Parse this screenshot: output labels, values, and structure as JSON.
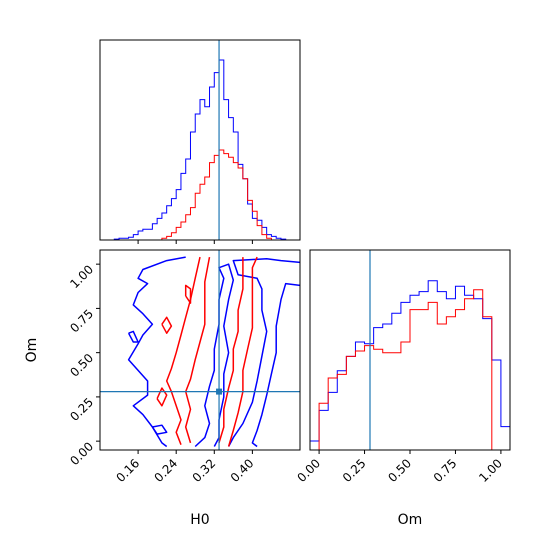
{
  "colors": {
    "blue": "#0000ff",
    "red": "#ff0000",
    "truth": "#1f77b4",
    "frame": "#000000"
  },
  "chart_data": [
    {
      "type": "histogram",
      "panel": "H0 marginal",
      "xlim": [
        0.08,
        0.5
      ],
      "truth": 0.33,
      "series": [
        {
          "color": "blue",
          "bin_edges": [
            0.09,
            0.1,
            0.11,
            0.12,
            0.13,
            0.14,
            0.15,
            0.16,
            0.17,
            0.18,
            0.19,
            0.2,
            0.21,
            0.22,
            0.23,
            0.24,
            0.25,
            0.26,
            0.27,
            0.28,
            0.29,
            0.3,
            0.31,
            0.32,
            0.33,
            0.34,
            0.35,
            0.36,
            0.37,
            0.38,
            0.39,
            0.4,
            0.41,
            0.42,
            0.43,
            0.44,
            0.45,
            0.46,
            0.47,
            0.48,
            0.49,
            0.5
          ],
          "heights": [
            0,
            0,
            0.005,
            0.01,
            0.01,
            0.015,
            0.03,
            0.05,
            0.06,
            0.06,
            0.09,
            0.12,
            0.15,
            0.19,
            0.23,
            0.28,
            0.37,
            0.45,
            0.6,
            0.7,
            0.78,
            0.74,
            0.85,
            0.93,
            1.0,
            0.78,
            0.68,
            0.6,
            0.42,
            0.34,
            0.2,
            0.12,
            0.11,
            0.07,
            0.03,
            0.02,
            0.01,
            0.005,
            0,
            0,
            0
          ]
        },
        {
          "color": "red",
          "bin_edges": [
            0.09,
            0.1,
            0.11,
            0.12,
            0.13,
            0.14,
            0.15,
            0.16,
            0.17,
            0.18,
            0.19,
            0.2,
            0.21,
            0.22,
            0.23,
            0.24,
            0.25,
            0.26,
            0.27,
            0.28,
            0.29,
            0.3,
            0.31,
            0.32,
            0.33,
            0.34,
            0.35,
            0.36,
            0.37,
            0.38,
            0.39,
            0.4,
            0.41,
            0.42,
            0.43,
            0.44,
            0.45,
            0.46,
            0.47,
            0.48,
            0.49,
            0.5
          ],
          "heights": [
            0,
            0,
            0,
            0,
            0,
            0,
            0,
            0,
            0,
            0,
            0,
            0,
            0.01,
            0.02,
            0.04,
            0.07,
            0.1,
            0.14,
            0.18,
            0.26,
            0.31,
            0.35,
            0.43,
            0.47,
            0.5,
            0.48,
            0.46,
            0.43,
            0.4,
            0.34,
            0.22,
            0.16,
            0.08,
            0.03,
            0.01,
            0,
            0,
            0,
            0,
            0,
            0
          ]
        }
      ]
    },
    {
      "type": "contour",
      "panel": "H0 vs Om",
      "xlabel": "H0",
      "ylabel": "Om",
      "xlim": [
        0.08,
        0.5
      ],
      "ylim": [
        -0.05,
        1.08
      ],
      "xticks": [
        0.16,
        0.24,
        0.32,
        0.4
      ],
      "xtick_labels": [
        "0.16",
        "0.24",
        "0.32",
        "0.40"
      ],
      "yticks": [
        0.0,
        0.25,
        0.5,
        0.75,
        1.0
      ],
      "ytick_labels": [
        "0.00",
        "0.25",
        "0.50",
        "0.75",
        "1.00"
      ],
      "truth": {
        "x": 0.33,
        "y": 0.28
      },
      "contours": [
        {
          "color": "blue",
          "level": "outer",
          "points": [
            [
              0.26,
              1.04
            ],
            [
              0.22,
              1.02
            ],
            [
              0.17,
              0.97
            ],
            [
              0.16,
              0.92
            ],
            [
              0.18,
              0.89
            ],
            [
              0.16,
              0.84
            ],
            [
              0.15,
              0.77
            ],
            [
              0.17,
              0.72
            ],
            [
              0.19,
              0.66
            ],
            [
              0.17,
              0.6
            ],
            [
              0.16,
              0.55
            ],
            [
              0.14,
              0.46
            ],
            [
              0.16,
              0.4
            ],
            [
              0.18,
              0.34
            ],
            [
              0.18,
              0.26
            ],
            [
              0.15,
              0.2
            ],
            [
              0.17,
              0.15
            ],
            [
              0.19,
              0.08
            ],
            [
              0.21,
              -0.01
            ],
            [
              0.22,
              -0.03
            ]
          ]
        },
        {
          "color": "blue",
          "level": "inner",
          "points": [
            [
              0.28,
              -0.03
            ],
            [
              0.3,
              0.02
            ],
            [
              0.31,
              0.1
            ],
            [
              0.3,
              0.2
            ],
            [
              0.31,
              0.31
            ],
            [
              0.32,
              0.4
            ],
            [
              0.32,
              0.52
            ],
            [
              0.33,
              0.66
            ],
            [
              0.33,
              0.8
            ],
            [
              0.34,
              0.92
            ],
            [
              0.33,
              0.98
            ],
            [
              0.35,
              1.0
            ],
            [
              0.36,
              0.91
            ],
            [
              0.35,
              0.8
            ],
            [
              0.34,
              0.65
            ],
            [
              0.35,
              0.5
            ],
            [
              0.34,
              0.38
            ],
            [
              0.34,
              0.25
            ],
            [
              0.33,
              0.12
            ],
            [
              0.33,
              0.02
            ],
            [
              0.32,
              -0.03
            ]
          ]
        },
        {
          "color": "blue",
          "level": "outer",
          "points": [
            [
              0.35,
              -0.03
            ],
            [
              0.36,
              0.02
            ],
            [
              0.38,
              0.1
            ],
            [
              0.4,
              0.22
            ],
            [
              0.41,
              0.34
            ],
            [
              0.42,
              0.48
            ],
            [
              0.43,
              0.62
            ],
            [
              0.42,
              0.74
            ],
            [
              0.42,
              0.86
            ],
            [
              0.41,
              0.92
            ],
            [
              0.37,
              0.94
            ],
            [
              0.36,
              1.02
            ],
            [
              0.43,
              1.03
            ],
            [
              0.46,
              1.02
            ],
            [
              0.5,
              1.01
            ]
          ]
        },
        {
          "color": "blue",
          "level": "outer",
          "points": [
            [
              0.5,
              0.88
            ],
            [
              0.47,
              0.89
            ],
            [
              0.46,
              0.8
            ],
            [
              0.45,
              0.65
            ],
            [
              0.45,
              0.5
            ],
            [
              0.44,
              0.38
            ],
            [
              0.43,
              0.26
            ],
            [
              0.42,
              0.15
            ],
            [
              0.41,
              0.06
            ],
            [
              0.4,
              -0.01
            ],
            [
              0.41,
              -0.03
            ]
          ]
        },
        {
          "color": "blue",
          "level": "inner",
          "points": [
            [
              0.14,
              0.61
            ],
            [
              0.15,
              0.56
            ],
            [
              0.16,
              0.56
            ],
            [
              0.15,
              0.62
            ],
            [
              0.14,
              0.61
            ]
          ]
        },
        {
          "color": "blue",
          "level": "inner",
          "points": [
            [
              0.19,
              0.08
            ],
            [
              0.2,
              0.04
            ],
            [
              0.22,
              0.05
            ],
            [
              0.21,
              0.09
            ],
            [
              0.19,
              0.08
            ]
          ]
        },
        {
          "color": "red",
          "level": "outer",
          "points": [
            [
              0.25,
              -0.02
            ],
            [
              0.24,
              0.05
            ],
            [
              0.25,
              0.12
            ],
            [
              0.24,
              0.2
            ],
            [
              0.23,
              0.28
            ],
            [
              0.22,
              0.34
            ],
            [
              0.23,
              0.41
            ],
            [
              0.24,
              0.5
            ],
            [
              0.25,
              0.6
            ],
            [
              0.26,
              0.7
            ],
            [
              0.27,
              0.8
            ],
            [
              0.28,
              0.92
            ],
            [
              0.29,
              1.04
            ]
          ]
        },
        {
          "color": "red",
          "level": "inner",
          "points": [
            [
              0.27,
              -0.01
            ],
            [
              0.26,
              0.08
            ],
            [
              0.27,
              0.18
            ],
            [
              0.26,
              0.28
            ],
            [
              0.27,
              0.35
            ],
            [
              0.28,
              0.46
            ],
            [
              0.29,
              0.56
            ],
            [
              0.3,
              0.66
            ],
            [
              0.3,
              0.78
            ],
            [
              0.3,
              0.9
            ],
            [
              0.31,
              1.04
            ]
          ]
        },
        {
          "color": "red",
          "level": "inner",
          "points": [
            [
              0.33,
              -0.01
            ],
            [
              0.34,
              0.08
            ],
            [
              0.34,
              0.18
            ],
            [
              0.35,
              0.3
            ],
            [
              0.36,
              0.4
            ],
            [
              0.36,
              0.52
            ],
            [
              0.37,
              0.62
            ],
            [
              0.37,
              0.74
            ],
            [
              0.38,
              0.86
            ],
            [
              0.38,
              0.96
            ],
            [
              0.38,
              1.04
            ]
          ]
        },
        {
          "color": "red",
          "level": "outer",
          "points": [
            [
              0.35,
              -0.03
            ],
            [
              0.36,
              0.06
            ],
            [
              0.37,
              0.16
            ],
            [
              0.38,
              0.28
            ],
            [
              0.38,
              0.4
            ],
            [
              0.39,
              0.52
            ],
            [
              0.4,
              0.64
            ],
            [
              0.4,
              0.76
            ],
            [
              0.4,
              0.88
            ],
            [
              0.4,
              0.98
            ],
            [
              0.41,
              1.04
            ]
          ]
        },
        {
          "color": "red",
          "level": "inner",
          "points": [
            [
              0.21,
              0.66
            ],
            [
              0.22,
              0.61
            ],
            [
              0.23,
              0.65
            ],
            [
              0.22,
              0.7
            ],
            [
              0.21,
              0.66
            ]
          ]
        },
        {
          "color": "red",
          "level": "inner",
          "points": [
            [
              0.2,
              0.24
            ],
            [
              0.21,
              0.2
            ],
            [
              0.22,
              0.26
            ],
            [
              0.21,
              0.3
            ],
            [
              0.2,
              0.24
            ]
          ]
        },
        {
          "color": "red",
          "level": "inner",
          "points": [
            [
              0.26,
              0.82
            ],
            [
              0.27,
              0.78
            ],
            [
              0.27,
              0.86
            ],
            [
              0.26,
              0.88
            ],
            [
              0.26,
              0.82
            ]
          ]
        }
      ]
    },
    {
      "type": "histogram",
      "panel": "Om marginal",
      "xlabel": "Om",
      "xlim": [
        -0.05,
        1.05
      ],
      "xticks": [
        0.0,
        0.25,
        0.5,
        0.75,
        1.0
      ],
      "xtick_labels": [
        "0.00",
        "0.25",
        "0.50",
        "0.75",
        "1.00"
      ],
      "truth": 0.28,
      "series": [
        {
          "color": "blue",
          "bin_edges": [
            -0.05,
            0.0,
            0.05,
            0.1,
            0.15,
            0.2,
            0.25,
            0.3,
            0.35,
            0.4,
            0.45,
            0.5,
            0.55,
            0.6,
            0.65,
            0.7,
            0.75,
            0.8,
            0.85,
            0.9,
            0.95,
            1.0,
            1.05
          ],
          "heights": [
            0.05,
            0.22,
            0.32,
            0.44,
            0.52,
            0.6,
            0.59,
            0.68,
            0.7,
            0.76,
            0.82,
            0.86,
            0.88,
            0.94,
            0.88,
            0.84,
            0.91,
            0.86,
            0.84,
            0.73,
            0.5,
            0.13
          ]
        },
        {
          "color": "red",
          "bin_edges": [
            -0.05,
            0.0,
            0.05,
            0.1,
            0.15,
            0.2,
            0.25,
            0.3,
            0.35,
            0.4,
            0.45,
            0.5,
            0.55,
            0.6,
            0.65,
            0.7,
            0.75,
            0.8,
            0.85,
            0.9,
            0.95,
            1.0,
            1.05
          ],
          "heights": [
            0,
            0.26,
            0.4,
            0.42,
            0.52,
            0.55,
            0.58,
            0.56,
            0.54,
            0.54,
            0.6,
            0.78,
            0.78,
            0.82,
            0.7,
            0.74,
            0.78,
            0.84,
            0.89,
            0.74,
            0,
            0
          ]
        }
      ]
    }
  ]
}
